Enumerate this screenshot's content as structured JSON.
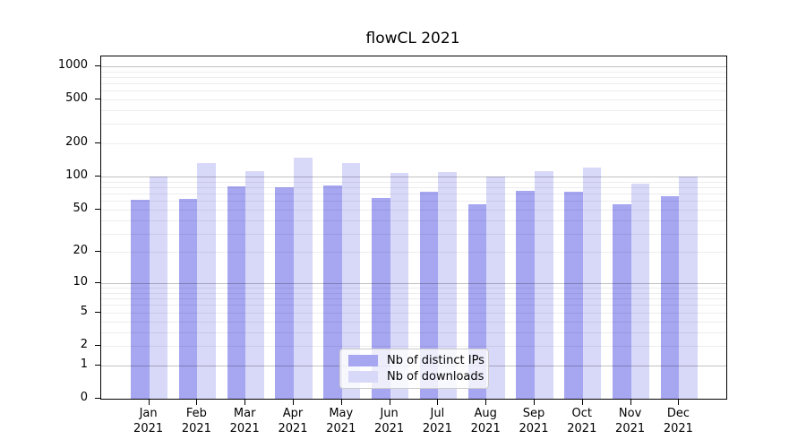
{
  "chart_data": {
    "type": "bar",
    "title": "flowCL 2021",
    "categories": [
      "Jan",
      "Feb",
      "Mar",
      "Apr",
      "May",
      "Jun",
      "Jul",
      "Aug",
      "Sep",
      "Oct",
      "Nov",
      "Dec"
    ],
    "x_year_label": "2021",
    "series": [
      {
        "name": "Nb of distinct IPs",
        "color": "#a6a6f1",
        "values": [
          61,
          62,
          82,
          80,
          83,
          64,
          73,
          56,
          74,
          73,
          56,
          66
        ]
      },
      {
        "name": "Nb of downloads",
        "color": "#d8d8f9",
        "values": [
          100,
          133,
          113,
          148,
          134,
          109,
          111,
          100,
          113,
          122,
          86,
          100
        ]
      }
    ],
    "y_scale": "log10(1+v)",
    "ylim": [
      0,
      1000
    ],
    "y_tick_labels": [
      "0",
      "1",
      "2",
      "5",
      "10",
      "20",
      "50",
      "100",
      "200",
      "500",
      "1000"
    ],
    "y_tick_values": [
      0,
      1,
      2,
      5,
      10,
      20,
      50,
      100,
      200,
      500,
      1000
    ],
    "y_major_gridlines": [
      1,
      10,
      100,
      1000
    ],
    "y_minor_gridlines": [
      2,
      3,
      4,
      5,
      6,
      7,
      8,
      9,
      20,
      30,
      40,
      50,
      60,
      70,
      80,
      90,
      200,
      300,
      400,
      500,
      600,
      700,
      800,
      900
    ],
    "grid": true,
    "legend_position": "lower-center"
  }
}
